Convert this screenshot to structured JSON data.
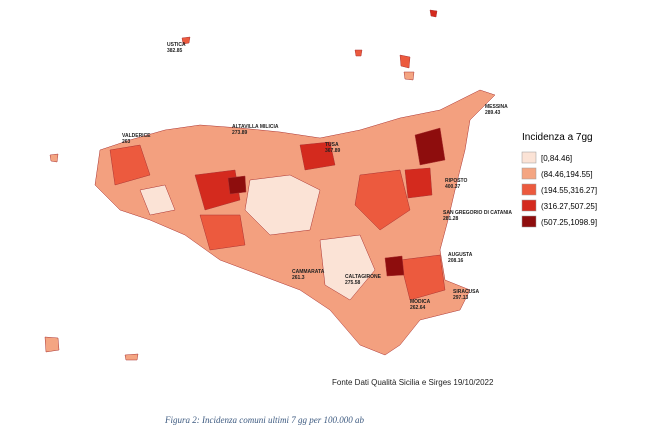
{
  "legend": {
    "title": "Incidenza a 7gg",
    "classes": [
      {
        "label": "[0,84.46]",
        "color": "#fbe3d6"
      },
      {
        "label": "(84.46,194.55]",
        "color": "#f4a582"
      },
      {
        "label": "(194.55,316.27]",
        "color": "#ec5a3e"
      },
      {
        "label": "(316.27,507.25]",
        "color": "#d42a1e"
      },
      {
        "label": "(507.25,1098.9]",
        "color": "#8e0d0d"
      }
    ]
  },
  "labels": [
    {
      "name": "USTICA",
      "value": "382.85"
    },
    {
      "name": "MESSINA",
      "value": "289.43"
    },
    {
      "name": "ALTAVILLA MILICIA",
      "value": "273.89"
    },
    {
      "name": "VALDERICE",
      "value": "263"
    },
    {
      "name": "RIPOSTO",
      "value": "400.37"
    },
    {
      "name": "SAN GREGORIO DI CATANIA",
      "value": "281.28"
    },
    {
      "name": "AUGUSTA",
      "value": "208.16"
    },
    {
      "name": "SIRACUSA",
      "value": "297.13"
    },
    {
      "name": "CALTAGIRONE",
      "value": "275.58"
    },
    {
      "name": "MODICA",
      "value": "262.64"
    },
    {
      "name": "TUSA",
      "value": "367.89"
    },
    {
      "name": "CAMMARATA",
      "value": "261.3"
    }
  ],
  "source": "Fonte Dati Qualità Sicilia e Sirges 19/10/2022",
  "caption": "Figura 2: Incidenza comuni ultimi 7 gg per 100.000 ab"
}
